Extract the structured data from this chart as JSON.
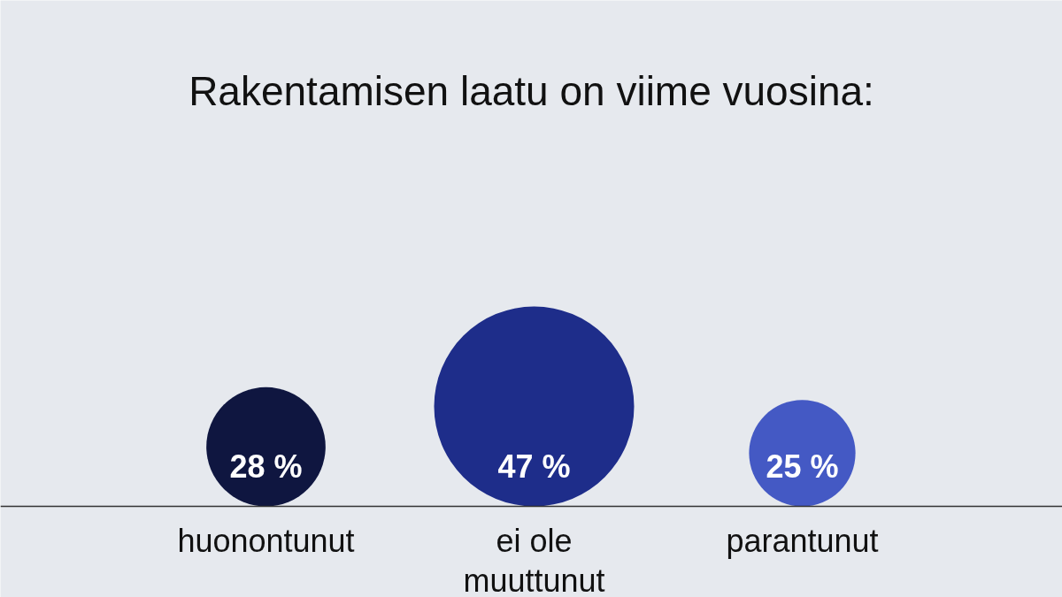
{
  "chart_data": {
    "type": "other",
    "title": "Rakentamisen laatu on viime vuosina:",
    "categories": [
      "huonontunut",
      "ei ole\nmuuttunut",
      "parantunut"
    ],
    "values": [
      28,
      47,
      25
    ],
    "value_labels": [
      "28 %",
      "47 %",
      "25 %"
    ],
    "colors": [
      "#0f1640",
      "#1e2d8a",
      "#4459c4"
    ]
  }
}
